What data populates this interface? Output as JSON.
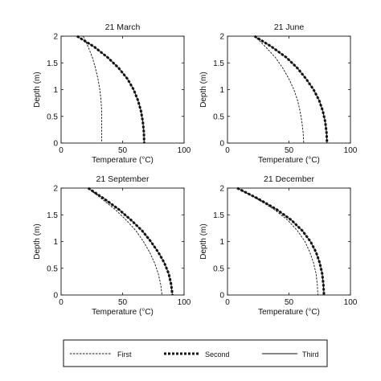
{
  "figure": {
    "legend": {
      "placement": "bottom",
      "entries": [
        {
          "label": "First",
          "style": "thin-dashed"
        },
        {
          "label": "Second",
          "style": "thick-dotted"
        },
        {
          "label": "Third",
          "style": "solid"
        }
      ]
    }
  },
  "chart_data": [
    {
      "type": "line",
      "title": "21 March",
      "xlabel": "Temperature (°C)",
      "ylabel": "Depth (m)",
      "xlim": [
        0,
        100
      ],
      "ylim": [
        0,
        2
      ],
      "xticks": [
        "0",
        "50",
        "100"
      ],
      "yticks": [
        "0",
        "0.5",
        "1",
        "1.5",
        "2"
      ],
      "y": [
        2.0,
        1.8,
        1.6,
        1.4,
        1.2,
        1.0,
        0.8,
        0.6,
        0.4,
        0.2,
        0.0
      ],
      "series": [
        {
          "name": "First",
          "style": "thin-dashed",
          "x": [
            18,
            22,
            25.5,
            28,
            30,
            31.5,
            32.5,
            33,
            33,
            33,
            33
          ]
        },
        {
          "name": "Second",
          "style": "thick-dotted",
          "x": [
            13,
            27,
            38,
            47,
            54,
            59,
            62.5,
            65,
            66.5,
            67.3,
            67.6
          ]
        },
        {
          "name": "Third",
          "style": "solid",
          "x": [
            13,
            27,
            38,
            47,
            54,
            59,
            62.5,
            65,
            66.5,
            67.3,
            67.6
          ]
        }
      ]
    },
    {
      "type": "line",
      "title": "21 June",
      "xlabel": "Temperature (°C)",
      "ylabel": "Depth (m)",
      "xlim": [
        0,
        100
      ],
      "ylim": [
        0,
        2
      ],
      "xticks": [
        "0",
        "50",
        "100"
      ],
      "yticks": [
        "0",
        "0.5",
        "1",
        "1.5",
        "2"
      ],
      "y": [
        2.0,
        1.8,
        1.6,
        1.4,
        1.2,
        1.0,
        0.8,
        0.6,
        0.4,
        0.2,
        0.0
      ],
      "series": [
        {
          "name": "First",
          "style": "thin-dashed",
          "x": [
            22,
            31,
            39,
            45,
            50,
            54,
            57,
            59,
            60.5,
            61.5,
            62
          ]
        },
        {
          "name": "Second",
          "style": "thick-dotted",
          "x": [
            22,
            36,
            48,
            57,
            64,
            70,
            74.5,
            77.5,
            79.5,
            80.5,
            81
          ]
        },
        {
          "name": "Third",
          "style": "solid",
          "x": [
            22,
            36,
            48,
            57,
            64,
            70,
            74.5,
            77.5,
            79.5,
            80.5,
            81
          ]
        }
      ]
    },
    {
      "type": "line",
      "title": "21 September",
      "xlabel": "Temperature (°C)",
      "ylabel": "Depth (m)",
      "xlim": [
        0,
        100
      ],
      "ylim": [
        0,
        2
      ],
      "xticks": [
        "0",
        "50",
        "100"
      ],
      "yticks": [
        "0",
        "0.5",
        "1",
        "1.5",
        "2"
      ],
      "y": [
        2.0,
        1.8,
        1.6,
        1.4,
        1.2,
        1.0,
        0.8,
        0.6,
        0.4,
        0.2,
        0.0
      ],
      "series": [
        {
          "name": "First",
          "style": "thin-dashed",
          "x": [
            22,
            33,
            44,
            53,
            61,
            67,
            72,
            76,
            79,
            81,
            82
          ]
        },
        {
          "name": "Second",
          "style": "thick-dotted",
          "x": [
            22,
            35,
            47,
            57,
            66,
            73,
            79,
            84,
            87.5,
            89.5,
            90.5
          ]
        },
        {
          "name": "Third",
          "style": "solid",
          "x": [
            22,
            35,
            47,
            57,
            66,
            73,
            79,
            84,
            87.5,
            89.5,
            90.5
          ]
        }
      ]
    },
    {
      "type": "line",
      "title": "21 December",
      "xlabel": "Temperature (°C)",
      "ylabel": "Depth (m)",
      "xlim": [
        0,
        100
      ],
      "ylim": [
        0,
        2
      ],
      "xticks": [
        "0",
        "50",
        "100"
      ],
      "yticks": [
        "0",
        "0.5",
        "1",
        "1.5",
        "2"
      ],
      "y": [
        2.0,
        1.8,
        1.6,
        1.4,
        1.2,
        1.0,
        0.8,
        0.6,
        0.4,
        0.2,
        0.0
      ],
      "series": [
        {
          "name": "First",
          "style": "thin-dashed",
          "x": [
            8,
            24,
            38,
            49,
            57,
            63,
            67,
            70,
            72,
            73,
            73.5
          ]
        },
        {
          "name": "Second",
          "style": "thick-dotted",
          "x": [
            8,
            25,
            40,
            52,
            61,
            67.5,
            72,
            75,
            77,
            78,
            78.5
          ]
        },
        {
          "name": "Third",
          "style": "solid",
          "x": [
            8,
            25,
            40,
            52,
            61,
            67.5,
            72,
            75,
            77,
            78,
            78.5
          ]
        }
      ]
    }
  ]
}
